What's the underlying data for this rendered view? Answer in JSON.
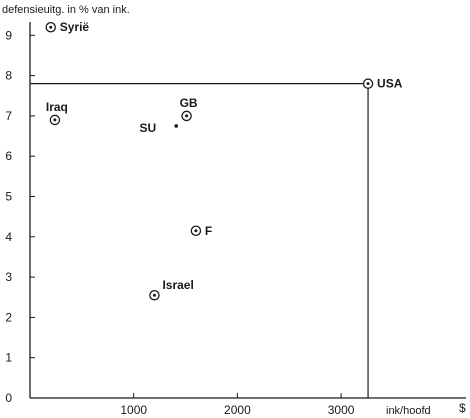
{
  "chart_data": {
    "type": "scatter",
    "title": "",
    "ylabel": "defensieuitg. in % van ink.",
    "xlabel": "ink/hoofd",
    "x_unit": "$",
    "xlim": [
      0,
      3600
    ],
    "ylim": [
      0,
      9.4
    ],
    "x_ticks": [
      {
        "value": 1000,
        "label": "1000"
      },
      {
        "value": 2000,
        "label": "2000"
      },
      {
        "value": 3000,
        "label": "3000"
      }
    ],
    "y_ticks": [
      {
        "value": 0,
        "label": "0"
      },
      {
        "value": 1,
        "label": "1"
      },
      {
        "value": 2,
        "label": "2"
      },
      {
        "value": 3,
        "label": "3"
      },
      {
        "value": 4,
        "label": "4"
      },
      {
        "value": 5,
        "label": "5"
      },
      {
        "value": 6,
        "label": "6"
      },
      {
        "value": 7,
        "label": "7"
      },
      {
        "value": 8,
        "label": "8"
      },
      {
        "value": 9,
        "label": "9"
      }
    ],
    "grid": false,
    "points": [
      {
        "label": "Syrië",
        "x": 200,
        "y": 9.2,
        "marker": "circle-dot",
        "label_side": "right"
      },
      {
        "label": "USA",
        "x": 3260,
        "y": 7.8,
        "marker": "circle-dot",
        "label_side": "right",
        "guide_lines": true
      },
      {
        "label": "Iraq",
        "x": 240,
        "y": 6.9,
        "marker": "circle-dot",
        "label_side": "above"
      },
      {
        "label": "GB",
        "x": 1510,
        "y": 7.0,
        "marker": "circle-dot",
        "label_side": "above"
      },
      {
        "label": "SU",
        "x": 1410,
        "y": 6.75,
        "marker": "dot",
        "label_side": "left"
      },
      {
        "label": "F",
        "x": 1600,
        "y": 4.15,
        "marker": "circle-dot",
        "label_side": "right"
      },
      {
        "label": "Israel",
        "x": 1200,
        "y": 2.55,
        "marker": "circle-dot",
        "label_side": "above-right"
      }
    ]
  }
}
